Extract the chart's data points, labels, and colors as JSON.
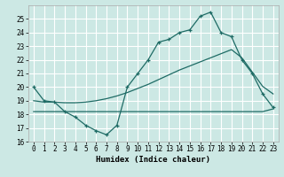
{
  "xlabel": "Humidex (Indice chaleur)",
  "bg_color": "#cce8e4",
  "grid_color": "#ffffff",
  "line_color": "#1e6b65",
  "xlim": [
    -0.5,
    23.5
  ],
  "ylim": [
    16,
    26
  ],
  "yticks": [
    16,
    17,
    18,
    19,
    20,
    21,
    22,
    23,
    24,
    25
  ],
  "xticks": [
    0,
    1,
    2,
    3,
    4,
    5,
    6,
    7,
    8,
    9,
    10,
    11,
    12,
    13,
    14,
    15,
    16,
    17,
    18,
    19,
    20,
    21,
    22,
    23
  ],
  "curve_x": [
    0,
    1,
    2,
    3,
    4,
    5,
    6,
    7,
    8,
    9,
    10,
    11,
    12,
    13,
    14,
    15,
    16,
    17,
    18,
    19,
    20,
    21,
    22,
    23
  ],
  "curve_y": [
    20.0,
    19.0,
    18.9,
    18.2,
    17.8,
    17.2,
    16.8,
    16.5,
    17.2,
    20.0,
    21.0,
    22.0,
    23.3,
    23.5,
    24.0,
    24.2,
    25.2,
    25.5,
    24.0,
    23.7,
    22.0,
    21.0,
    19.5,
    18.5
  ],
  "rise_x": [
    0,
    1,
    2,
    3,
    4,
    5,
    6,
    7,
    8,
    9,
    10,
    11,
    12,
    13,
    14,
    15,
    16,
    17,
    18,
    19,
    20,
    21,
    22,
    23
  ],
  "rise_y": [
    19.0,
    18.9,
    18.9,
    18.85,
    18.85,
    18.9,
    19.0,
    19.15,
    19.35,
    19.6,
    19.9,
    20.2,
    20.55,
    20.9,
    21.25,
    21.55,
    21.85,
    22.15,
    22.45,
    22.75,
    22.15,
    21.1,
    20.05,
    19.5
  ],
  "flat_x": [
    0,
    1,
    2,
    3,
    4,
    5,
    6,
    7,
    8,
    9,
    10,
    11,
    12,
    13,
    14,
    15,
    16,
    17,
    18,
    19,
    20,
    21,
    22,
    23
  ],
  "flat_y": [
    18.2,
    18.2,
    18.2,
    18.2,
    18.2,
    18.2,
    18.2,
    18.2,
    18.2,
    18.2,
    18.2,
    18.2,
    18.2,
    18.2,
    18.2,
    18.2,
    18.2,
    18.2,
    18.2,
    18.2,
    18.2,
    18.2,
    18.2,
    18.4
  ]
}
